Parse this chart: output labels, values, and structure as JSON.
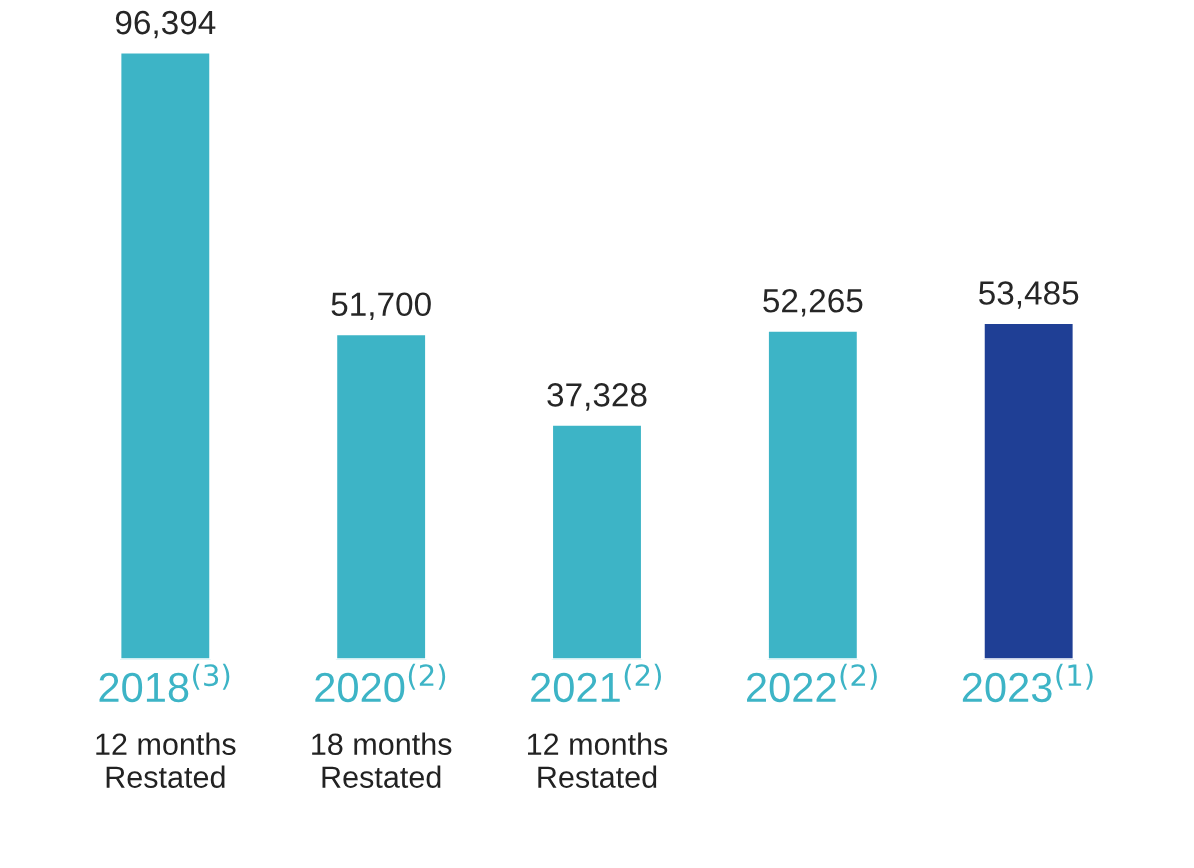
{
  "chart_data": {
    "type": "bar",
    "categories": [
      "2018$^{(3)}$\n12 months\nRestated",
      "2020$^{(2)}$\n18 months\nRestated",
      "2021$^{(2)}$\n12 months\nRestated",
      "2022$^{(2)}$",
      "2023$^{(1)}$"
    ],
    "values": [
      96394,
      51700,
      37328,
      52265,
      53485
    ],
    "colors": [
      "#3db4c6",
      "#3db4c6",
      "#3db4c6",
      "#3db4c6",
      "#1f3f95"
    ],
    "value_labels": [
      "96,394",
      "51,700",
      "37,328",
      "52,265",
      "53,485"
    ]
  }
}
